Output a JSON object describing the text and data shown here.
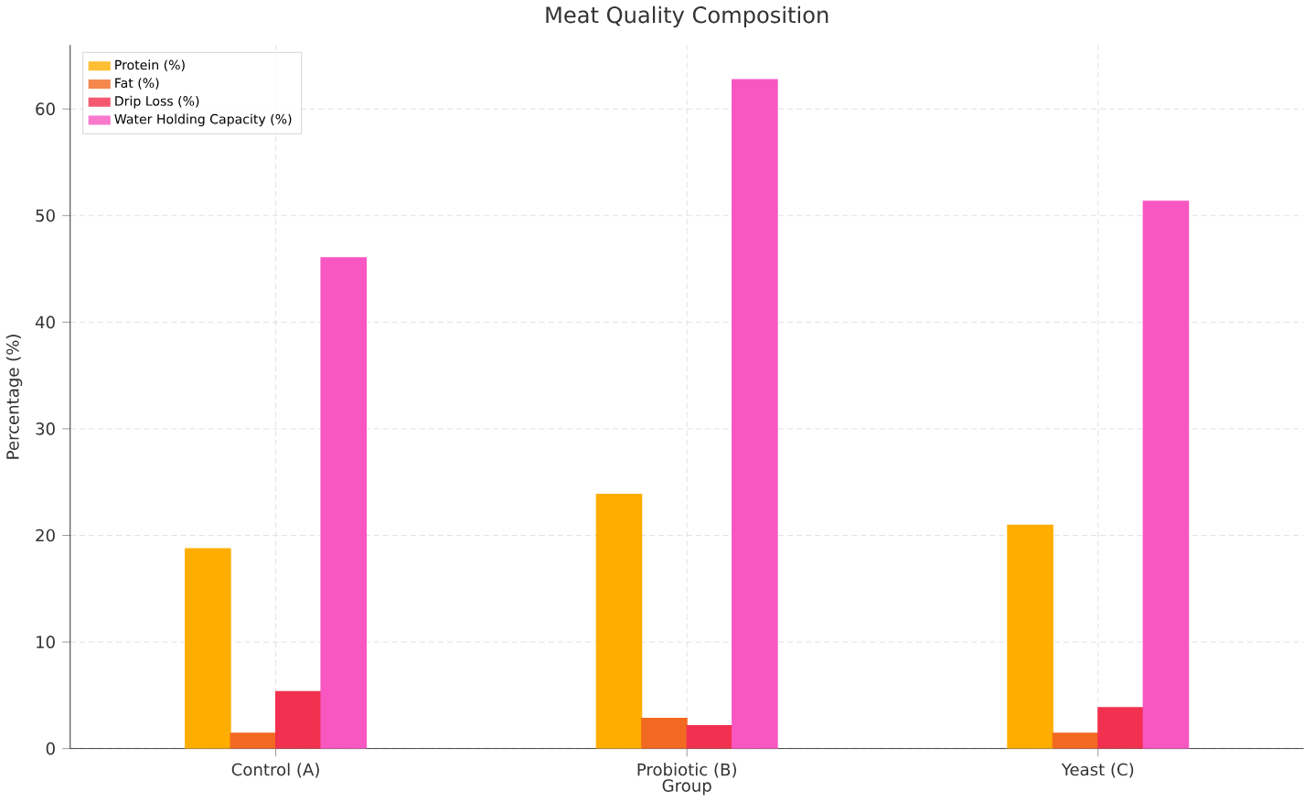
{
  "chart_data": {
    "type": "bar",
    "title": "Meat Quality Composition",
    "xlabel": "Group",
    "ylabel": "Percentage (%)",
    "categories": [
      "Control (A)",
      "Probiotic (B)",
      "Yeast (C)"
    ],
    "series": [
      {
        "name": "Protein (%)",
        "color": "#ffae00",
        "values": [
          18.8,
          23.9,
          21.0
        ]
      },
      {
        "name": "Fat (%)",
        "color": "#f26a21",
        "values": [
          1.5,
          2.9,
          1.5
        ]
      },
      {
        "name": "Drip Loss (%)",
        "color": "#f2304f",
        "values": [
          5.4,
          2.2,
          3.9
        ]
      },
      {
        "name": "Water Holding Capacity (%)",
        "color": "#f857c1",
        "values": [
          46.1,
          62.8,
          51.4
        ]
      }
    ],
    "ylim": [
      0,
      66
    ],
    "yticks": [
      0,
      10,
      20,
      30,
      40,
      50,
      60
    ],
    "grid": true,
    "legend": "top left"
  }
}
